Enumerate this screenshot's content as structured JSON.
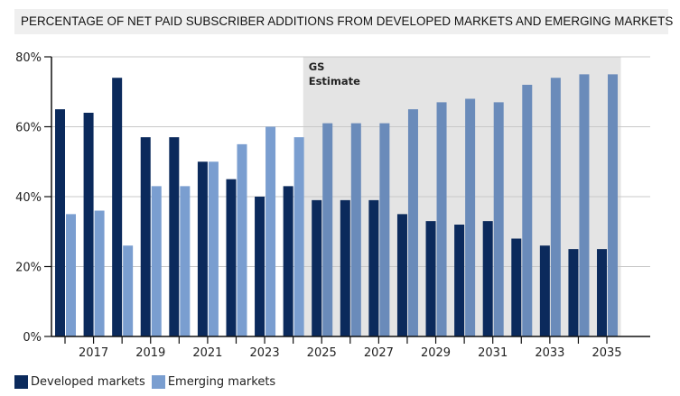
{
  "chart_data": {
    "type": "bar",
    "title": "PERCENTAGE OF NET PAID SUBSCRIBER ADDITIONS FROM DEVELOPED MARKETS AND EMERGING MARKETS",
    "xlabel": "",
    "ylabel": "",
    "ylim": [
      0,
      80
    ],
    "yticks": [
      0,
      20,
      40,
      60,
      80
    ],
    "ytick_labels": [
      "0%",
      "20%",
      "40%",
      "60%",
      "80%"
    ],
    "grid": true,
    "categories": [
      "2016",
      "2017",
      "2018",
      "2019",
      "2020",
      "2021",
      "2022",
      "2023",
      "2024",
      "2025",
      "2026",
      "2027",
      "2028",
      "2029",
      "2030",
      "2031",
      "2032",
      "2033",
      "2034",
      "2035"
    ],
    "xtick_labels_shown": [
      "2017",
      "2019",
      "2021",
      "2023",
      "2025",
      "2027",
      "2029",
      "2031",
      "2033",
      "2035"
    ],
    "series": [
      {
        "name": "Developed markets",
        "color": "#0b2a5c",
        "values": [
          65,
          64,
          74,
          57,
          57,
          50,
          45,
          40,
          43,
          39,
          39,
          39,
          35,
          33,
          32,
          33,
          28,
          26,
          25,
          25
        ]
      },
      {
        "name": "Emerging markets",
        "color": "#7a9ed0",
        "values": [
          35,
          36,
          26,
          43,
          43,
          50,
          55,
          60,
          57,
          61,
          61,
          61,
          65,
          67,
          68,
          67,
          72,
          74,
          75,
          75
        ]
      }
    ],
    "annotation": {
      "label_line1": "GS",
      "label_line2": "Estimate",
      "from_category": "2025",
      "to_category": "2035",
      "shade_color": "#e4e4e4",
      "bar_color_in_shade": "#6a8bba"
    },
    "legend": {
      "position": "bottom-left"
    }
  }
}
